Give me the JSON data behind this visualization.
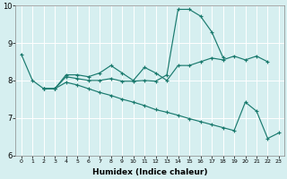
{
  "xlabel": "Humidex (Indice chaleur)",
  "background_color": "#d6eff0",
  "grid_color": "#ffffff",
  "line_color": "#1a7a6e",
  "xlim": [
    -0.5,
    23.5
  ],
  "ylim": [
    6,
    10
  ],
  "yticks": [
    6,
    7,
    8,
    9,
    10
  ],
  "xticks": [
    0,
    1,
    2,
    3,
    4,
    5,
    6,
    7,
    8,
    9,
    10,
    11,
    12,
    13,
    14,
    15,
    16,
    17,
    18,
    19,
    20,
    21,
    22,
    23
  ],
  "series": [
    {
      "x": [
        0,
        1,
        2,
        3,
        4,
        5,
        6,
        7,
        8,
        9,
        10,
        11,
        12,
        13,
        14,
        15,
        16,
        17,
        18,
        19,
        20,
        21,
        22
      ],
      "y": [
        8.7,
        8.0,
        7.78,
        7.78,
        8.15,
        8.15,
        8.1,
        8.2,
        8.4,
        8.2,
        8.0,
        8.35,
        8.2,
        8.0,
        8.4,
        8.4,
        8.5,
        8.6,
        8.55,
        8.65,
        8.55,
        8.65,
        8.5
      ]
    },
    {
      "x": [
        2,
        3,
        4,
        5,
        6,
        7,
        8,
        9,
        10,
        11,
        12,
        13,
        14,
        15,
        16,
        17,
        18
      ],
      "y": [
        7.78,
        7.78,
        8.1,
        8.05,
        8.0,
        8.0,
        8.05,
        7.98,
        7.98,
        8.0,
        7.98,
        8.15,
        9.9,
        9.9,
        9.72,
        9.3,
        8.62
      ]
    },
    {
      "x": [
        2,
        3,
        4,
        5,
        6,
        7,
        8,
        9,
        10,
        11,
        12,
        13,
        14,
        15,
        16,
        17,
        18,
        19,
        20,
        21,
        22,
        23
      ],
      "y": [
        7.78,
        7.78,
        7.95,
        7.88,
        7.78,
        7.68,
        7.6,
        7.5,
        7.42,
        7.33,
        7.22,
        7.15,
        7.07,
        6.98,
        6.9,
        6.82,
        6.74,
        6.66,
        7.42,
        7.18,
        6.45,
        6.6
      ]
    }
  ]
}
